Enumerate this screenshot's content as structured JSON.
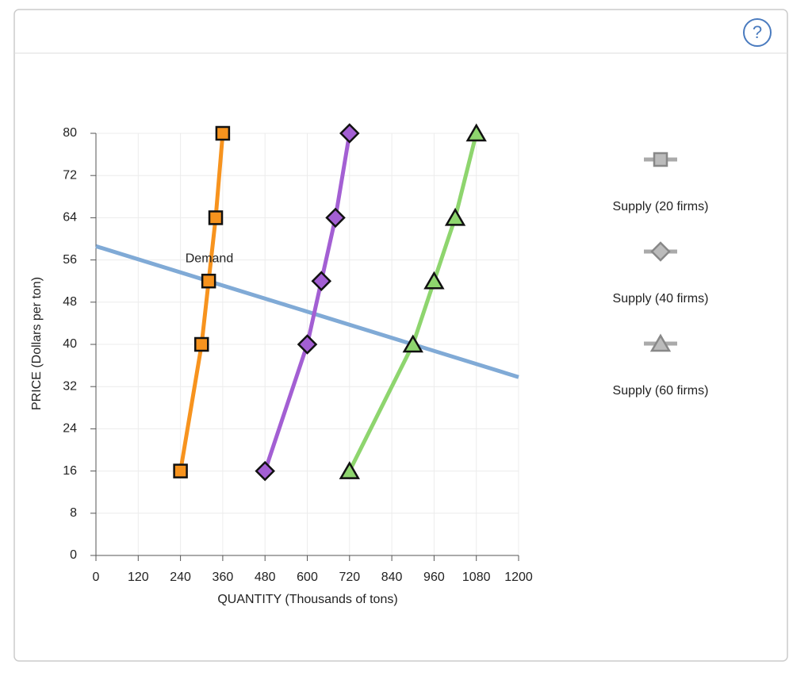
{
  "help": "?",
  "chart_data": {
    "type": "line",
    "x_label": "QUANTITY (Thousands of tons)",
    "y_label": "PRICE (Dollars per ton)",
    "xlim": [
      0,
      1200
    ],
    "xticks": [
      0,
      120,
      240,
      360,
      480,
      600,
      720,
      840,
      960,
      1080,
      1200
    ],
    "ylim": [
      0,
      80
    ],
    "yticks": [
      0,
      8,
      16,
      24,
      32,
      40,
      48,
      56,
      64,
      72,
      80
    ],
    "grid": true,
    "legend": "right",
    "series": [
      {
        "name": "Demand",
        "color": "#80aad6",
        "marker": "none",
        "in_legend": false,
        "x": [
          0,
          1200
        ],
        "values": [
          58.6,
          33.8
        ]
      },
      {
        "name": "Supply (20 firms)",
        "color": "#f7931e",
        "marker": "square",
        "in_legend": true,
        "x": [
          240,
          300,
          320,
          340,
          360
        ],
        "values": [
          16,
          40,
          52,
          64,
          80
        ]
      },
      {
        "name": "Supply (40 firms)",
        "color": "#a35fd3",
        "marker": "diamond",
        "in_legend": true,
        "x": [
          480,
          600,
          640,
          680,
          720
        ],
        "values": [
          16,
          40,
          52,
          64,
          80
        ]
      },
      {
        "name": "Supply (60 firms)",
        "color": "#8ed56e",
        "marker": "triangle",
        "in_legend": true,
        "x": [
          720,
          900,
          960,
          1020,
          1080
        ],
        "values": [
          16,
          40,
          52,
          64,
          80
        ]
      }
    ]
  }
}
